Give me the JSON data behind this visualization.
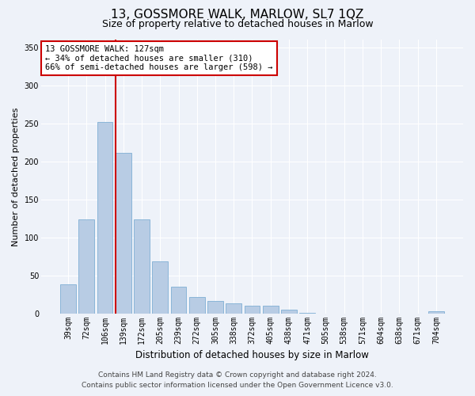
{
  "title": "13, GOSSMORE WALK, MARLOW, SL7 1QZ",
  "subtitle": "Size of property relative to detached houses in Marlow",
  "xlabel": "Distribution of detached houses by size in Marlow",
  "ylabel": "Number of detached properties",
  "categories": [
    "39sqm",
    "72sqm",
    "106sqm",
    "139sqm",
    "172sqm",
    "205sqm",
    "239sqm",
    "272sqm",
    "305sqm",
    "338sqm",
    "372sqm",
    "405sqm",
    "438sqm",
    "471sqm",
    "505sqm",
    "538sqm",
    "571sqm",
    "604sqm",
    "638sqm",
    "671sqm",
    "704sqm"
  ],
  "values": [
    38,
    124,
    252,
    211,
    124,
    68,
    35,
    21,
    16,
    13,
    10,
    10,
    5,
    1,
    0,
    0,
    0,
    0,
    0,
    0,
    3
  ],
  "bar_color": "#b8cce4",
  "bar_edge_color": "#7fafd4",
  "vline_color": "#cc0000",
  "vline_x_idx": 2.575,
  "annotation_title": "13 GOSSMORE WALK: 127sqm",
  "annotation_line1": "← 34% of detached houses are smaller (310)",
  "annotation_line2": "66% of semi-detached houses are larger (598) →",
  "annotation_box_color": "#ffffff",
  "annotation_border_color": "#cc0000",
  "ylim": [
    0,
    360
  ],
  "yticks": [
    0,
    50,
    100,
    150,
    200,
    250,
    300,
    350
  ],
  "footer1": "Contains HM Land Registry data © Crown copyright and database right 2024.",
  "footer2": "Contains public sector information licensed under the Open Government Licence v3.0.",
  "bg_color": "#eef2f9",
  "plot_bg_color": "#eef2f9",
  "title_fontsize": 11,
  "subtitle_fontsize": 9,
  "xlabel_fontsize": 8.5,
  "ylabel_fontsize": 8,
  "tick_fontsize": 7,
  "annotation_fontsize": 7.5,
  "footer_fontsize": 6.5
}
